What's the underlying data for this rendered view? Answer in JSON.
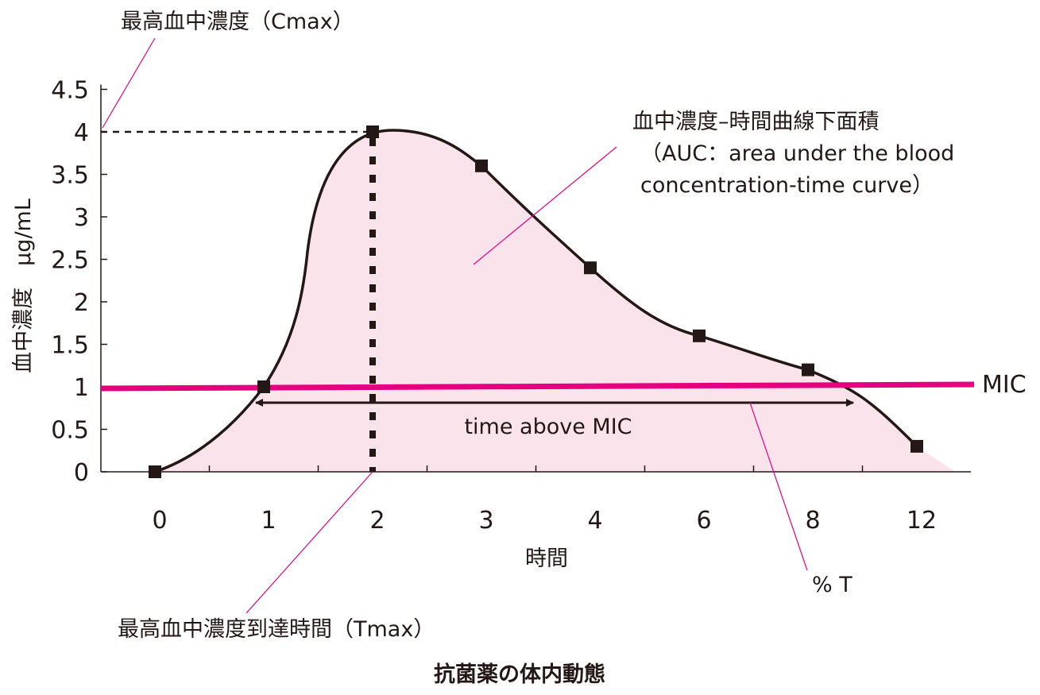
{
  "chart_data": {
    "type": "line",
    "title": "抗菌薬の体内動態",
    "xlabel": "時間",
    "ylabel": "血中濃度　μg/mL",
    "x": [
      0,
      1,
      2,
      3,
      4,
      6,
      8,
      12
    ],
    "x_tick_labels": [
      "0",
      "1",
      "2",
      "3",
      "4",
      "6",
      "8",
      "12"
    ],
    "y_ticks": [
      0,
      0.5,
      1,
      1.5,
      2,
      2.5,
      3,
      3.5,
      4,
      4.5
    ],
    "y_tick_labels": [
      "0",
      "0.5",
      "1",
      "1.5",
      "2",
      "2.5",
      "3",
      "3.5",
      "4",
      "4.5"
    ],
    "ylim": [
      0,
      4.5
    ],
    "series": [
      {
        "values": [
          0,
          1.0,
          4.0,
          3.6,
          2.4,
          1.6,
          1.2,
          0.3
        ]
      }
    ],
    "mic_value": 1,
    "mic_label": "MIC",
    "cmax": 4,
    "tmax": 2,
    "annotations": {
      "cmax": "最高血中濃度（Cmax）",
      "tmax": "最高血中濃度到達時間（Tmax）",
      "auc_line1": "血中濃度–時間曲線下面積",
      "auc_line2": "（AUC：area under the blood",
      "auc_line3": "concentration-time curve）",
      "time_above_mic": "time above MIC",
      "percent_t": "% T"
    },
    "colors": {
      "curve": "#231815",
      "auc_fill": "#fbe3ec",
      "mic_line": "#e4007f",
      "leader_line": "#e4007f"
    },
    "grid": false
  }
}
